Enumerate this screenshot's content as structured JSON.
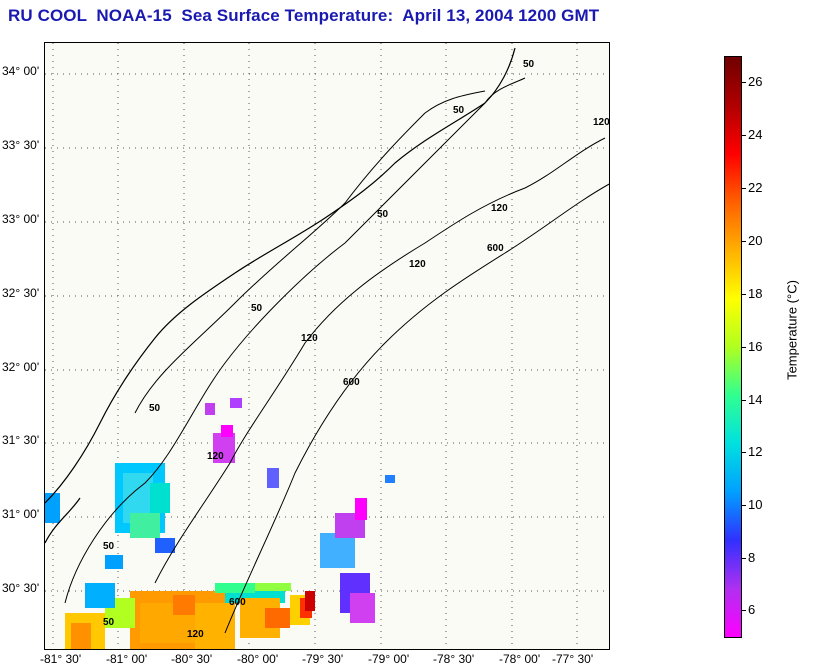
{
  "title": "RU COOL  NOAA-15  Sea Surface Temperature:  April 13, 2004 1200 GMT",
  "map": {
    "lat_ticks": [
      "34° 00'",
      "33° 30'",
      "33° 00'",
      "32° 30'",
      "32° 00'",
      "31° 30'",
      "31° 00'",
      "30° 30'"
    ],
    "lon_ticks": [
      "-81° 30'",
      "-81° 00'",
      "-80° 30'",
      "-80° 00'",
      "-79° 30'",
      "-79° 00'",
      "-78° 30'",
      "-78° 00'",
      "-77° 30'"
    ],
    "contour_labels": [
      "50",
      "50",
      "50",
      "50",
      "50",
      "50",
      "50",
      "120",
      "120",
      "120",
      "120",
      "120",
      "120",
      "600",
      "600",
      "600"
    ]
  },
  "colorbar": {
    "title": "Temperature (°C)",
    "ticks": [
      "26",
      "24",
      "22",
      "20",
      "18",
      "16",
      "14",
      "12",
      "10",
      "8",
      "6"
    ],
    "range": [
      5,
      27
    ],
    "colors": [
      "#ff00ff",
      "#b030f0",
      "#3030ff",
      "#00a0ff",
      "#00e0e0",
      "#30ff90",
      "#b0ff20",
      "#ffff00",
      "#ffb000",
      "#ff6000",
      "#ff0000",
      "#b00000",
      "#700000"
    ]
  }
}
